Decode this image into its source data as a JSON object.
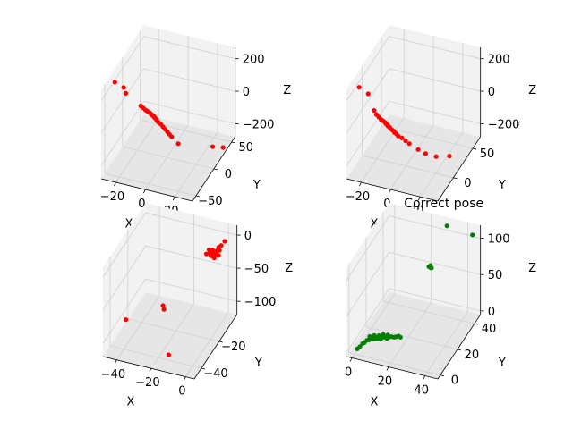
{
  "chart_data": [
    {
      "type": "scatter",
      "title": "",
      "xlabel": "X",
      "ylabel": "Y",
      "zlabel": "Z",
      "xticks": [
        "−20",
        "0",
        "20"
      ],
      "yticks": [
        "−50",
        "0",
        "50"
      ],
      "zticks": [
        "−200",
        "0",
        "200"
      ],
      "color": "#ff0000",
      "grid": true,
      "points": [
        [
          -26,
          -38,
          250
        ],
        [
          -22,
          -30,
          200
        ],
        [
          -21,
          -28,
          160
        ],
        [
          -14,
          -15,
          55
        ],
        [
          -13,
          -12,
          35
        ],
        [
          -12,
          -10,
          18
        ],
        [
          -11,
          -8,
          5
        ],
        [
          -10,
          -6,
          -8
        ],
        [
          -10,
          -5,
          -15
        ],
        [
          -9,
          -4,
          -25
        ],
        [
          -9,
          -3,
          -32
        ],
        [
          -8,
          -2,
          -40
        ],
        [
          -8,
          -1,
          -50
        ],
        [
          -7,
          0,
          -60
        ],
        [
          -7,
          1,
          -72
        ],
        [
          -6,
          2,
          -85
        ],
        [
          -5,
          4,
          -100
        ],
        [
          -4,
          6,
          -120
        ],
        [
          -3,
          8,
          -140
        ],
        [
          -2,
          10,
          -160
        ],
        [
          -1,
          12,
          -180
        ],
        [
          0,
          14,
          -200
        ],
        [
          4,
          16,
          -240
        ],
        [
          24,
          30,
          -260
        ],
        [
          30,
          34,
          -265
        ]
      ]
    },
    {
      "type": "scatter",
      "title": "",
      "xlabel": "X",
      "ylabel": "Y",
      "zlabel": "Z",
      "xticks": [
        "−20",
        "0",
        "20"
      ],
      "yticks": [
        "0",
        "50"
      ],
      "zticks": [
        "−200",
        "0",
        "200"
      ],
      "color": "#ff0000",
      "grid": true,
      "points": [
        [
          -24,
          -30,
          260
        ],
        [
          -20,
          -22,
          200
        ],
        [
          -17,
          -18,
          90
        ],
        [
          -16,
          -16,
          60
        ],
        [
          -15,
          -14,
          40
        ],
        [
          -14,
          -12,
          20
        ],
        [
          -13,
          -10,
          5
        ],
        [
          -12,
          -8,
          -10
        ],
        [
          -12,
          -7,
          -20
        ],
        [
          -11,
          -6,
          -30
        ],
        [
          -11,
          -5,
          -40
        ],
        [
          -10,
          -4,
          -50
        ],
        [
          -10,
          -3,
          -60
        ],
        [
          -9,
          -2,
          -70
        ],
        [
          -8,
          -1,
          -80
        ],
        [
          -8,
          0,
          -90
        ],
        [
          -7,
          1,
          -100
        ],
        [
          -6,
          2,
          -115
        ],
        [
          -4,
          4,
          -130
        ],
        [
          -2,
          6,
          -150
        ],
        [
          0,
          8,
          -170
        ],
        [
          5,
          12,
          -210
        ],
        [
          9,
          16,
          -240
        ],
        [
          15,
          20,
          -260
        ],
        [
          22,
          28,
          -270
        ]
      ]
    },
    {
      "type": "scatter",
      "title": "",
      "xlabel": "X",
      "ylabel": "Y",
      "zlabel": "Z",
      "xticks": [
        "−40",
        "−20",
        "0"
      ],
      "yticks": [
        "−40",
        "−20"
      ],
      "zticks": [
        "−100",
        "−50",
        "0"
      ],
      "color": "#ff0000",
      "grid": true,
      "points": [
        [
          2,
          -8,
          5
        ],
        [
          1,
          -10,
          2
        ],
        [
          0,
          -12,
          -2
        ],
        [
          0,
          -10,
          -6
        ],
        [
          -1,
          -12,
          -8
        ],
        [
          -1,
          -14,
          -10
        ],
        [
          -2,
          -11,
          -12
        ],
        [
          -2,
          -13,
          -5
        ],
        [
          -3,
          -12,
          -3
        ],
        [
          -3,
          -14,
          -8
        ],
        [
          -1,
          -9,
          -4
        ],
        [
          0,
          -11,
          -1
        ],
        [
          1,
          -13,
          -7
        ],
        [
          -2,
          -10,
          -9
        ],
        [
          -4,
          -13,
          -6
        ],
        [
          -3,
          -11,
          -11
        ],
        [
          -5,
          -12,
          -4
        ],
        [
          -6,
          -13,
          -9
        ],
        [
          -25,
          -25,
          -75
        ],
        [
          -24,
          -26,
          -78
        ],
        [
          -44,
          -30,
          -98
        ],
        [
          -14,
          -40,
          -112
        ]
      ]
    },
    {
      "type": "scatter",
      "title": "Correct pose",
      "xlabel": "X",
      "ylabel": "Y",
      "zlabel": "Z",
      "xticks": [
        "0",
        "20",
        "40"
      ],
      "yticks": [
        "0",
        "20",
        "40"
      ],
      "zticks": [
        "0",
        "50",
        "100"
      ],
      "color": "#008000",
      "grid": true,
      "points": [
        [
          1,
          1,
          1
        ],
        [
          2,
          2,
          3
        ],
        [
          3,
          3,
          6
        ],
        [
          4,
          3,
          8
        ],
        [
          5,
          4,
          10
        ],
        [
          6,
          4,
          11
        ],
        [
          7,
          5,
          12
        ],
        [
          8,
          5,
          12
        ],
        [
          9,
          6,
          11
        ],
        [
          10,
          6,
          12
        ],
        [
          11,
          7,
          10
        ],
        [
          12,
          7,
          13
        ],
        [
          13,
          8,
          12
        ],
        [
          14,
          8,
          11
        ],
        [
          15,
          9,
          12
        ],
        [
          16,
          9,
          13
        ],
        [
          17,
          10,
          11
        ],
        [
          18,
          10,
          12
        ],
        [
          19,
          11,
          12
        ],
        [
          20,
          11,
          11
        ],
        [
          6,
          5,
          14
        ],
        [
          8,
          6,
          15
        ],
        [
          10,
          7,
          14
        ],
        [
          12,
          8,
          15
        ],
        [
          14,
          9,
          14
        ],
        [
          22,
          40,
          58
        ],
        [
          23,
          41,
          55
        ],
        [
          23,
          40,
          57
        ],
        [
          22,
          42,
          56
        ],
        [
          30,
          44,
          112
        ],
        [
          44,
          44,
          108
        ]
      ]
    }
  ]
}
